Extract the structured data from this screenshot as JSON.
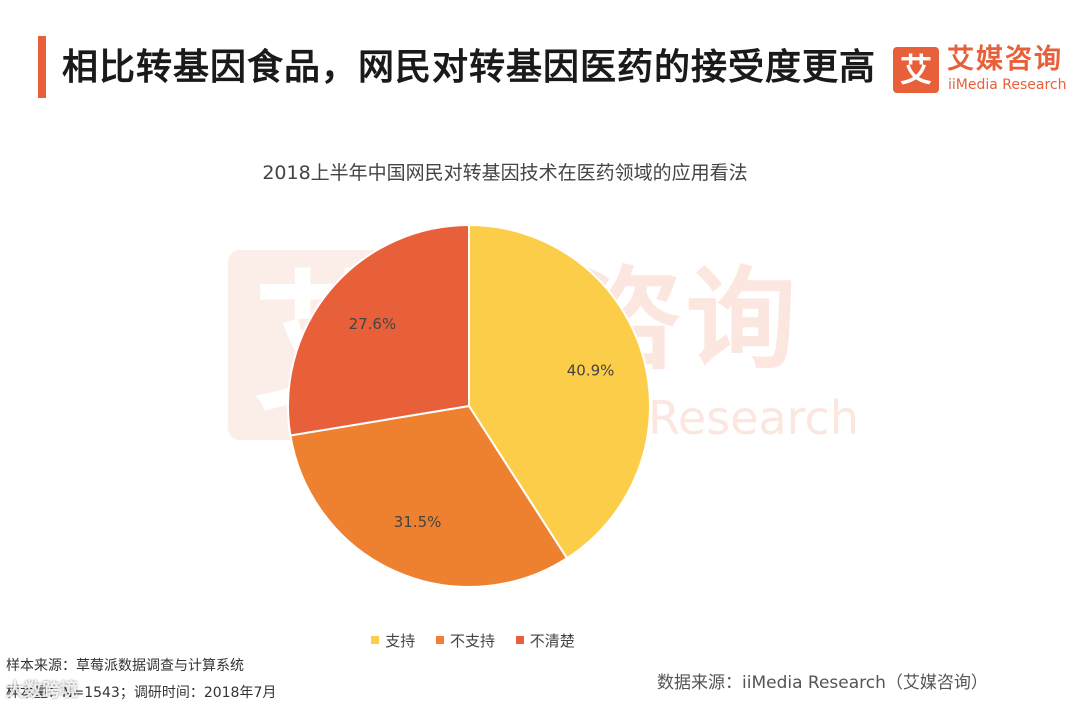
{
  "header": {
    "title": "相比转基因食品，网民对转基因医药的接受度更高",
    "accent_color": "#e8603a"
  },
  "logo": {
    "mark": "艾",
    "name_cn": "艾媒咨询",
    "name_en": "iiMedia Research"
  },
  "watermark": {
    "mark": "艾",
    "name_cn": "媒咨询",
    "name_en": "Research"
  },
  "chart_data": {
    "type": "pie",
    "title": "2018上半年中国网民对转基因技术在医药领域的应用看法",
    "categories": [
      "支持",
      "不支持",
      "不清楚"
    ],
    "values": [
      40.9,
      31.5,
      27.6
    ],
    "labels": [
      "40.9%",
      "31.5%",
      "27.6%"
    ],
    "colors": [
      "#fccd48",
      "#ee8130",
      "#e8603a"
    ],
    "legend_position": "bottom"
  },
  "footnotes": {
    "sample_source": "样本来源：草莓派数据调查与计算系统",
    "sample_size": "样本量：N=1543；调研时间：2018年7月",
    "data_source": "数据来源：iiMedia Research（艾媒咨询）"
  },
  "corner_watermark": "大数跨境"
}
